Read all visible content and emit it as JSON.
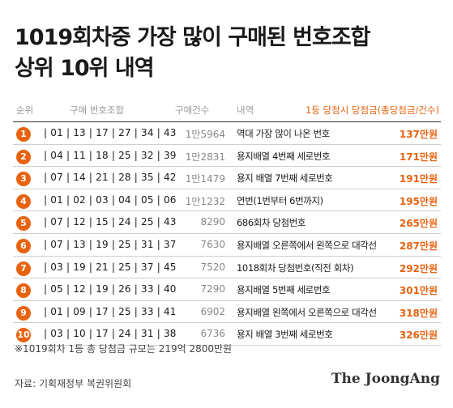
{
  "title": {
    "line1": "1019회차중 가장 많이 구매된 번호조합",
    "line2": "상위 10위 내역"
  },
  "header": {
    "rank": "순위",
    "numbers": "구매 번호조합",
    "count": "구매건수",
    "desc": "내역",
    "prize": "1등 당첨시 당첨금(총당첨금/건수)"
  },
  "chart_data": {
    "type": "table",
    "columns": [
      "순위",
      "구매 번호조합",
      "구매건수",
      "내역",
      "1등 당첨시 당첨금(총당첨금/건수)"
    ],
    "rows": [
      {
        "rank": "1",
        "numbers": "| 01 | 13 | 17 | 27 | 34 | 43",
        "count": "1만5964",
        "desc": "역대 가장 많이 나온 번호",
        "prize": "137만원"
      },
      {
        "rank": "2",
        "numbers": "| 04 | 11 | 18 | 25 | 32 | 39",
        "count": "1만2831",
        "desc": "용지배열 4번째 세로번호",
        "prize": "171만원"
      },
      {
        "rank": "3",
        "numbers": "| 07 | 14 | 21 | 28 | 35 | 42",
        "count": "1만1479",
        "desc": "용지 배열 7번째 세로번호",
        "prize": "191만원"
      },
      {
        "rank": "4",
        "numbers": "| 01 | 02 | 03 | 04 | 05 | 06",
        "count": "1만1232",
        "desc": "연번(1번부터 6번까지)",
        "prize": "195만원"
      },
      {
        "rank": "5",
        "numbers": "| 07 | 12 | 15 | 24 | 25 | 43",
        "count": "8290",
        "desc": "686회차 당첨번호",
        "prize": "265만원"
      },
      {
        "rank": "6",
        "numbers": "| 07 | 13 | 19 | 25 | 31 | 37",
        "count": "7630",
        "desc": "용지배열 오른쪽에서 왼쪽으로 대각선",
        "prize": "287만원"
      },
      {
        "rank": "7",
        "numbers": "| 03 | 19 | 21 | 25 | 37 | 45",
        "count": "7520",
        "desc": "1018회차 당첨번호(직전 회차)",
        "prize": "292만원"
      },
      {
        "rank": "8",
        "numbers": "| 05 | 12 | 19 | 26 | 33 | 40",
        "count": "7290",
        "desc": "용지배열 5번째 세로번호",
        "prize": "301만원"
      },
      {
        "rank": "9",
        "numbers": "| 01 | 09 | 17 | 25 | 33 | 41",
        "count": "6902",
        "desc": "용지배열 왼쪽에서 오른쪽으로 대각선",
        "prize": "318만원"
      },
      {
        "rank": "10",
        "numbers": "| 03 | 10 | 17 | 24 | 31 | 38",
        "count": "6736",
        "desc": "용지 배열 3번째 세로번호",
        "prize": "326만원"
      }
    ]
  },
  "footnote": "※1019회차 1등 총 당첨금 규모는 219억 2800만원",
  "source": "자료: 기획재정부 복권위원회",
  "logo": "The JoongAng",
  "colors": {
    "accent": "#e8620f"
  }
}
